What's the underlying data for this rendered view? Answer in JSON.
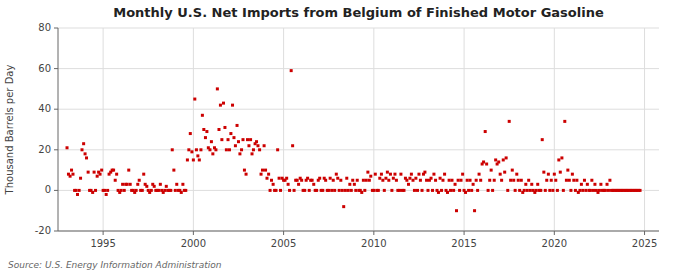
{
  "chart_data": {
    "type": "scatter",
    "title": "Monthly U.S. Net Imports from Belgium of Finished Motor Gasoline",
    "ylabel": "Thousand Barrels per Day",
    "source": "Source: U.S. Energy Information Administration",
    "color": "#cc0000",
    "marker": "square",
    "grid": true,
    "xlim": [
      1992.5,
      2025.8
    ],
    "xticks": [
      1995,
      2000,
      2005,
      2010,
      2015,
      2020,
      2025
    ],
    "ylim": [
      -20,
      80
    ],
    "yticks": [
      -20,
      0,
      20,
      40,
      60,
      80
    ],
    "x": [
      1993.0,
      1993.08,
      1993.17,
      1993.25,
      1993.33,
      1993.42,
      1993.5,
      1993.58,
      1993.67,
      1993.75,
      1993.83,
      1993.92,
      1994.0,
      1994.08,
      1994.17,
      1994.25,
      1994.33,
      1994.42,
      1994.5,
      1994.58,
      1994.67,
      1994.75,
      1994.83,
      1994.92,
      1995.0,
      1995.08,
      1995.17,
      1995.25,
      1995.33,
      1995.42,
      1995.5,
      1995.58,
      1995.67,
      1995.75,
      1995.83,
      1995.92,
      1996.0,
      1996.08,
      1996.17,
      1996.25,
      1996.33,
      1996.42,
      1996.5,
      1996.58,
      1996.67,
      1996.75,
      1996.83,
      1996.92,
      1997.0,
      1997.08,
      1997.17,
      1997.25,
      1997.33,
      1997.42,
      1997.5,
      1997.58,
      1997.67,
      1997.75,
      1997.83,
      1997.92,
      1998.0,
      1998.08,
      1998.17,
      1998.25,
      1998.33,
      1998.42,
      1998.5,
      1998.58,
      1998.67,
      1998.75,
      1998.83,
      1998.92,
      1999.0,
      1999.08,
      1999.17,
      1999.25,
      1999.33,
      1999.42,
      1999.5,
      1999.58,
      1999.67,
      1999.75,
      1999.83,
      1999.92,
      2000.0,
      2000.08,
      2000.17,
      2000.25,
      2000.33,
      2000.42,
      2000.5,
      2000.58,
      2000.67,
      2000.75,
      2000.83,
      2000.92,
      2001.0,
      2001.08,
      2001.17,
      2001.25,
      2001.33,
      2001.42,
      2001.5,
      2001.58,
      2001.67,
      2001.75,
      2001.83,
      2001.92,
      2002.0,
      2002.08,
      2002.17,
      2002.25,
      2002.33,
      2002.42,
      2002.5,
      2002.58,
      2002.67,
      2002.75,
      2002.83,
      2002.92,
      2003.0,
      2003.08,
      2003.17,
      2003.25,
      2003.33,
      2003.42,
      2003.5,
      2003.58,
      2003.67,
      2003.75,
      2003.83,
      2003.92,
      2004.0,
      2004.08,
      2004.17,
      2004.25,
      2004.33,
      2004.42,
      2004.5,
      2004.58,
      2004.67,
      2004.75,
      2004.83,
      2004.92,
      2005.0,
      2005.08,
      2005.17,
      2005.25,
      2005.33,
      2005.42,
      2005.5,
      2005.58,
      2005.67,
      2005.75,
      2005.83,
      2005.92,
      2006.0,
      2006.08,
      2006.17,
      2006.25,
      2006.33,
      2006.42,
      2006.5,
      2006.58,
      2006.67,
      2006.75,
      2006.83,
      2006.92,
      2007.0,
      2007.08,
      2007.17,
      2007.25,
      2007.33,
      2007.42,
      2007.5,
      2007.58,
      2007.67,
      2007.75,
      2007.83,
      2007.92,
      2008.0,
      2008.08,
      2008.17,
      2008.25,
      2008.33,
      2008.42,
      2008.5,
      2008.58,
      2008.67,
      2008.75,
      2008.83,
      2008.92,
      2009.0,
      2009.08,
      2009.17,
      2009.25,
      2009.33,
      2009.42,
      2009.5,
      2009.58,
      2009.67,
      2009.75,
      2009.83,
      2009.92,
      2010.0,
      2010.08,
      2010.17,
      2010.25,
      2010.33,
      2010.42,
      2010.5,
      2010.58,
      2010.67,
      2010.75,
      2010.83,
      2010.92,
      2011.0,
      2011.08,
      2011.17,
      2011.25,
      2011.33,
      2011.42,
      2011.5,
      2011.58,
      2011.67,
      2011.75,
      2011.83,
      2011.92,
      2012.0,
      2012.08,
      2012.17,
      2012.25,
      2012.33,
      2012.42,
      2012.5,
      2012.58,
      2012.67,
      2012.75,
      2012.83,
      2012.92,
      2013.0,
      2013.08,
      2013.17,
      2013.25,
      2013.33,
      2013.42,
      2013.5,
      2013.58,
      2013.67,
      2013.75,
      2013.83,
      2013.92,
      2014.0,
      2014.08,
      2014.17,
      2014.25,
      2014.33,
      2014.42,
      2014.5,
      2014.58,
      2014.67,
      2014.75,
      2014.83,
      2014.92,
      2015.0,
      2015.08,
      2015.17,
      2015.25,
      2015.33,
      2015.42,
      2015.5,
      2015.58,
      2015.67,
      2015.75,
      2015.83,
      2015.92,
      2016.0,
      2016.08,
      2016.17,
      2016.25,
      2016.33,
      2016.42,
      2016.5,
      2016.58,
      2016.67,
      2016.75,
      2016.83,
      2016.92,
      2017.0,
      2017.08,
      2017.17,
      2017.25,
      2017.33,
      2017.42,
      2017.5,
      2017.58,
      2017.67,
      2017.75,
      2017.83,
      2017.92,
      2018.0,
      2018.08,
      2018.17,
      2018.25,
      2018.33,
      2018.42,
      2018.5,
      2018.58,
      2018.67,
      2018.75,
      2018.83,
      2018.92,
      2019.0,
      2019.08,
      2019.17,
      2019.25,
      2019.33,
      2019.42,
      2019.5,
      2019.58,
      2019.67,
      2019.75,
      2019.83,
      2019.92,
      2020.0,
      2020.08,
      2020.17,
      2020.25,
      2020.33,
      2020.42,
      2020.5,
      2020.58,
      2020.67,
      2020.75,
      2020.83,
      2020.92,
      2021.0,
      2021.08,
      2021.17,
      2021.25,
      2021.33,
      2021.42,
      2021.5,
      2021.58,
      2021.67,
      2021.75,
      2021.83,
      2021.92,
      2022.0,
      2022.08,
      2022.17,
      2022.25,
      2022.33,
      2022.42,
      2022.5,
      2022.58,
      2022.67,
      2022.75,
      2022.83,
      2022.92,
      2023.0,
      2023.08,
      2023.17,
      2023.25,
      2023.33,
      2023.42,
      2023.5,
      2023.58,
      2023.67,
      2023.75,
      2023.83,
      2023.92,
      2024.0,
      2024.08,
      2024.17,
      2024.25,
      2024.33,
      2024.42,
      2024.5,
      2024.58,
      2024.67,
      2024.75
    ],
    "values": [
      21,
      8,
      7,
      10,
      8,
      0,
      0,
      -2,
      0,
      6,
      20,
      23,
      18,
      16,
      9,
      0,
      0,
      -1,
      9,
      0,
      7,
      9,
      8,
      10,
      0,
      0,
      -2,
      0,
      8,
      9,
      10,
      10,
      5,
      8,
      0,
      -1,
      0,
      3,
      0,
      3,
      3,
      10,
      3,
      0,
      0,
      -1,
      0,
      3,
      5,
      0,
      0,
      8,
      3,
      2,
      0,
      -1,
      0,
      3,
      2,
      0,
      0,
      0,
      3,
      0,
      -1,
      0,
      2,
      0,
      0,
      0,
      20,
      10,
      0,
      3,
      0,
      0,
      -1,
      3,
      0,
      0,
      15,
      20,
      28,
      19,
      15,
      45,
      20,
      17,
      15,
      20,
      37,
      30,
      26,
      29,
      21,
      20,
      24,
      18,
      21,
      20,
      50,
      30,
      42,
      25,
      43,
      31,
      20,
      25,
      20,
      28,
      42,
      26,
      22,
      32,
      24,
      18,
      20,
      25,
      10,
      8,
      25,
      22,
      25,
      18,
      20,
      23,
      24,
      22,
      20,
      8,
      10,
      22,
      10,
      6,
      8,
      0,
      5,
      3,
      0,
      0,
      20,
      6,
      0,
      6,
      5,
      5,
      6,
      3,
      0,
      59,
      22,
      0,
      5,
      5,
      3,
      6,
      5,
      0,
      0,
      5,
      6,
      0,
      5,
      5,
      3,
      0,
      0,
      5,
      6,
      0,
      0,
      6,
      5,
      0,
      0,
      6,
      0,
      5,
      0,
      8,
      6,
      0,
      5,
      0,
      -8,
      0,
      6,
      0,
      3,
      0,
      5,
      3,
      0,
      5,
      0,
      0,
      -1,
      5,
      0,
      5,
      9,
      5,
      7,
      0,
      0,
      8,
      0,
      0,
      6,
      8,
      5,
      0,
      6,
      9,
      5,
      8,
      0,
      6,
      8,
      5,
      0,
      0,
      8,
      0,
      0,
      6,
      5,
      3,
      6,
      8,
      5,
      0,
      6,
      0,
      8,
      5,
      0,
      8,
      9,
      5,
      0,
      5,
      6,
      0,
      8,
      5,
      0,
      -1,
      6,
      0,
      5,
      8,
      0,
      -1,
      5,
      0,
      5,
      0,
      3,
      -10,
      5,
      0,
      5,
      8,
      0,
      -1,
      5,
      0,
      5,
      0,
      3,
      -10,
      5,
      0,
      8,
      5,
      13,
      14,
      29,
      13,
      0,
      5,
      10,
      0,
      5,
      15,
      13,
      14,
      8,
      5,
      15,
      9,
      16,
      0,
      34,
      5,
      10,
      5,
      0,
      8,
      5,
      0,
      5,
      -1,
      0,
      3,
      0,
      5,
      0,
      3,
      0,
      -1,
      0,
      3,
      0,
      0,
      25,
      9,
      0,
      5,
      8,
      0,
      5,
      0,
      8,
      5,
      0,
      15,
      9,
      16,
      0,
      34,
      5,
      10,
      5,
      0,
      8,
      5,
      0,
      5,
      -1,
      0,
      3,
      0,
      5,
      0,
      3,
      0,
      0,
      5,
      0,
      3,
      0,
      -1,
      0,
      3,
      0,
      0,
      0,
      3,
      0,
      5,
      0,
      0,
      0,
      0,
      0,
      0,
      0,
      0,
      0,
      0,
      0,
      0,
      0,
      0,
      0,
      0,
      0,
      0,
      0,
      0
    ]
  }
}
